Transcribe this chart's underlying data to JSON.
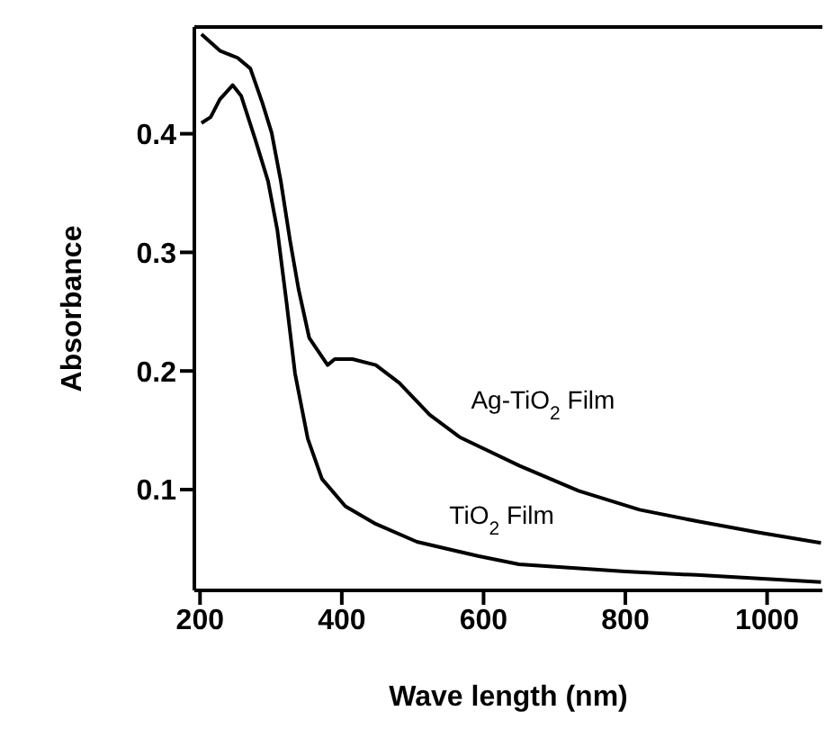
{
  "chart_data": {
    "type": "line",
    "xlabel": "Wave length (nm)",
    "ylabel": "Absorbance",
    "xlim": [
      192,
      1078
    ],
    "ylim": [
      0.015,
      0.49
    ],
    "xticks": [
      200,
      400,
      600,
      800,
      1000
    ],
    "yticks": [
      0.1,
      0.2,
      0.3,
      0.4
    ],
    "marker": "none",
    "line_style": "solid",
    "series": [
      {
        "name": "Ag-TiO$_{2}$ Film",
        "color": "#000000",
        "x": [
          202,
          228,
          253,
          271,
          288,
          301,
          314,
          327,
          339,
          354,
          380,
          390,
          415,
          448,
          481,
          524,
          567,
          651,
          734,
          820,
          904,
          987,
          1076
        ],
        "values": [
          0.484,
          0.47,
          0.464,
          0.455,
          0.426,
          0.401,
          0.36,
          0.31,
          0.269,
          0.228,
          0.205,
          0.21,
          0.21,
          0.205,
          0.19,
          0.163,
          0.144,
          0.12,
          0.099,
          0.083,
          0.073,
          0.064,
          0.055
        ]
      },
      {
        "name": "TiO$_{2}$ Film",
        "color": "#000000",
        "x": [
          202,
          215,
          228,
          246,
          258,
          278,
          296,
          309,
          322,
          334,
          352,
          372,
          405,
          448,
          506,
          592,
          650,
          800,
          900,
          1076
        ],
        "values": [
          0.409,
          0.414,
          0.429,
          0.441,
          0.432,
          0.395,
          0.36,
          0.319,
          0.258,
          0.198,
          0.143,
          0.109,
          0.086,
          0.071,
          0.056,
          0.044,
          0.037,
          0.031,
          0.028,
          0.022
        ]
      }
    ]
  }
}
